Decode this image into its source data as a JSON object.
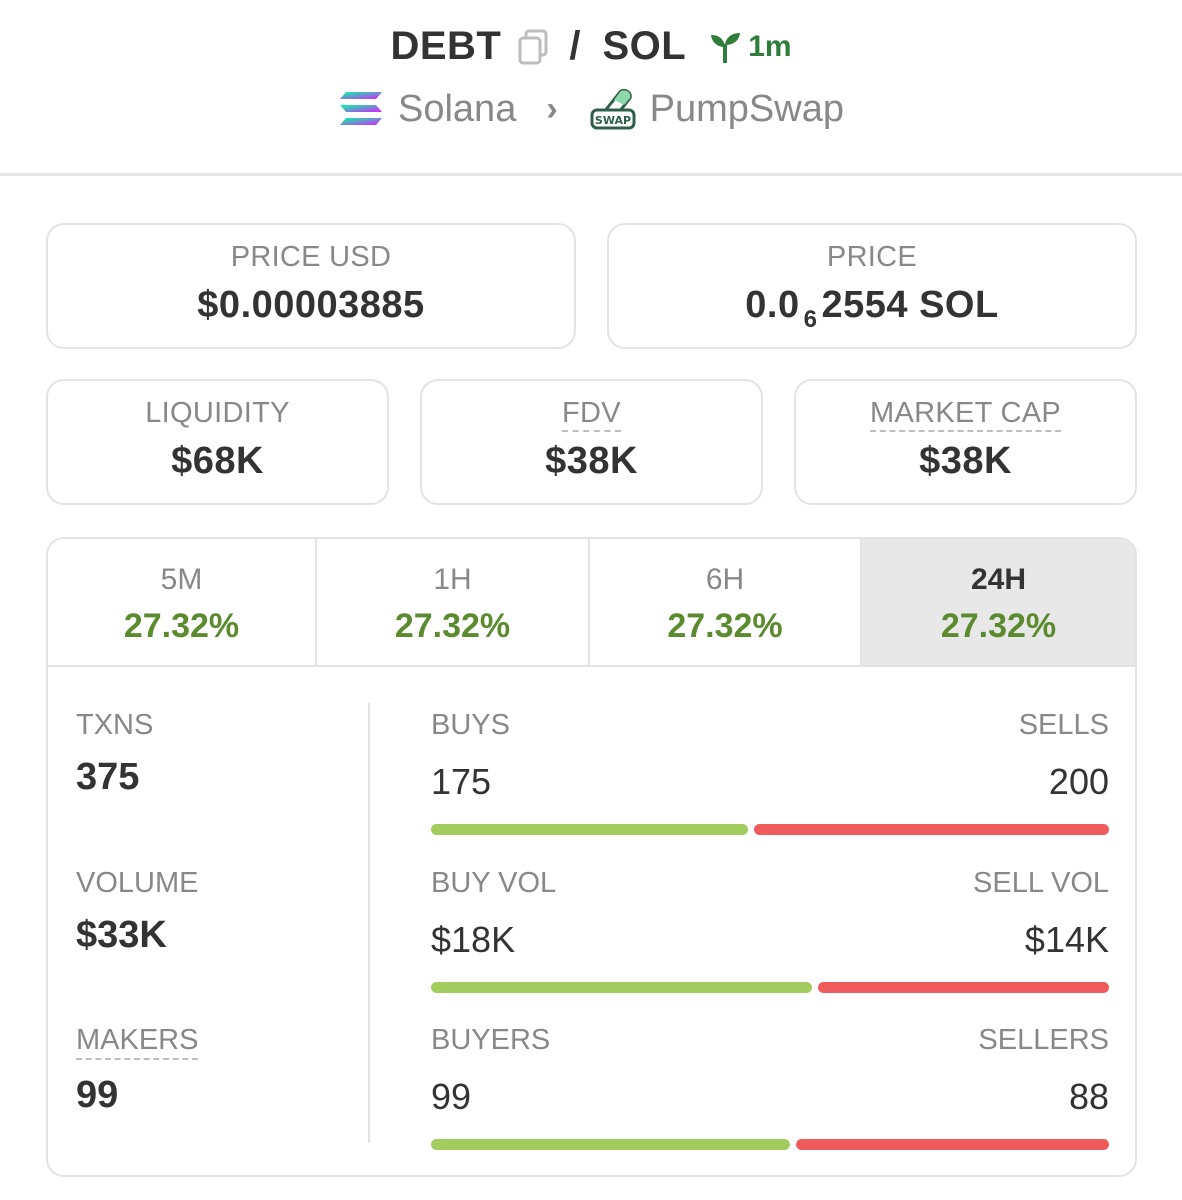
{
  "header": {
    "base_token": "DEBT",
    "separator": "/",
    "quote_token": "SOL",
    "age": "1m",
    "chain": "Solana",
    "dex": "PumpSwap",
    "dex_logo_text": "SWAP"
  },
  "stats": {
    "price_usd": {
      "label": "PRICE USD",
      "value": "$0.00003885"
    },
    "price_native": {
      "label": "PRICE",
      "prefix": "0.0",
      "subscript_zeros": "6",
      "digits": "2554",
      "unit": "SOL"
    },
    "liquidity": {
      "label": "LIQUIDITY",
      "value": "$68K"
    },
    "fdv": {
      "label": "FDV",
      "value": "$38K"
    },
    "market_cap": {
      "label": "MARKET CAP",
      "value": "$38K"
    }
  },
  "tabs": [
    {
      "label": "5M",
      "change": "27.32%"
    },
    {
      "label": "1H",
      "change": "27.32%"
    },
    {
      "label": "6H",
      "change": "27.32%"
    },
    {
      "label": "24H",
      "change": "27.32%",
      "active": true
    }
  ],
  "totals": {
    "txns": {
      "label": "TXNS",
      "value": "375"
    },
    "volume": {
      "label": "VOLUME",
      "value": "$33K"
    },
    "makers": {
      "label": "MAKERS",
      "value": "99"
    }
  },
  "breakdown": {
    "txns": {
      "buy_label": "BUYS",
      "sell_label": "SELLS",
      "buy_value": "175",
      "sell_value": "200",
      "buy_share": 0.467
    },
    "volume": {
      "buy_label": "BUY VOL",
      "sell_label": "SELL VOL",
      "buy_value": "$18K",
      "sell_value": "$14K",
      "buy_share": 0.562
    },
    "makers": {
      "buy_label": "BUYERS",
      "sell_label": "SELLERS",
      "buy_value": "99",
      "sell_value": "88",
      "buy_share": 0.529
    }
  },
  "colors": {
    "positive": "#5b8a2f",
    "buy_bar": "#a3cc5f",
    "sell_bar": "#ef5b5b",
    "age_badge": "#2f7d3a"
  },
  "icons": {
    "copy": "copy-icon",
    "age": "seedling-icon",
    "chain": "solana-logo-icon",
    "chevron": "chevron-right-icon",
    "dex": "pumpswap-logo-icon"
  }
}
